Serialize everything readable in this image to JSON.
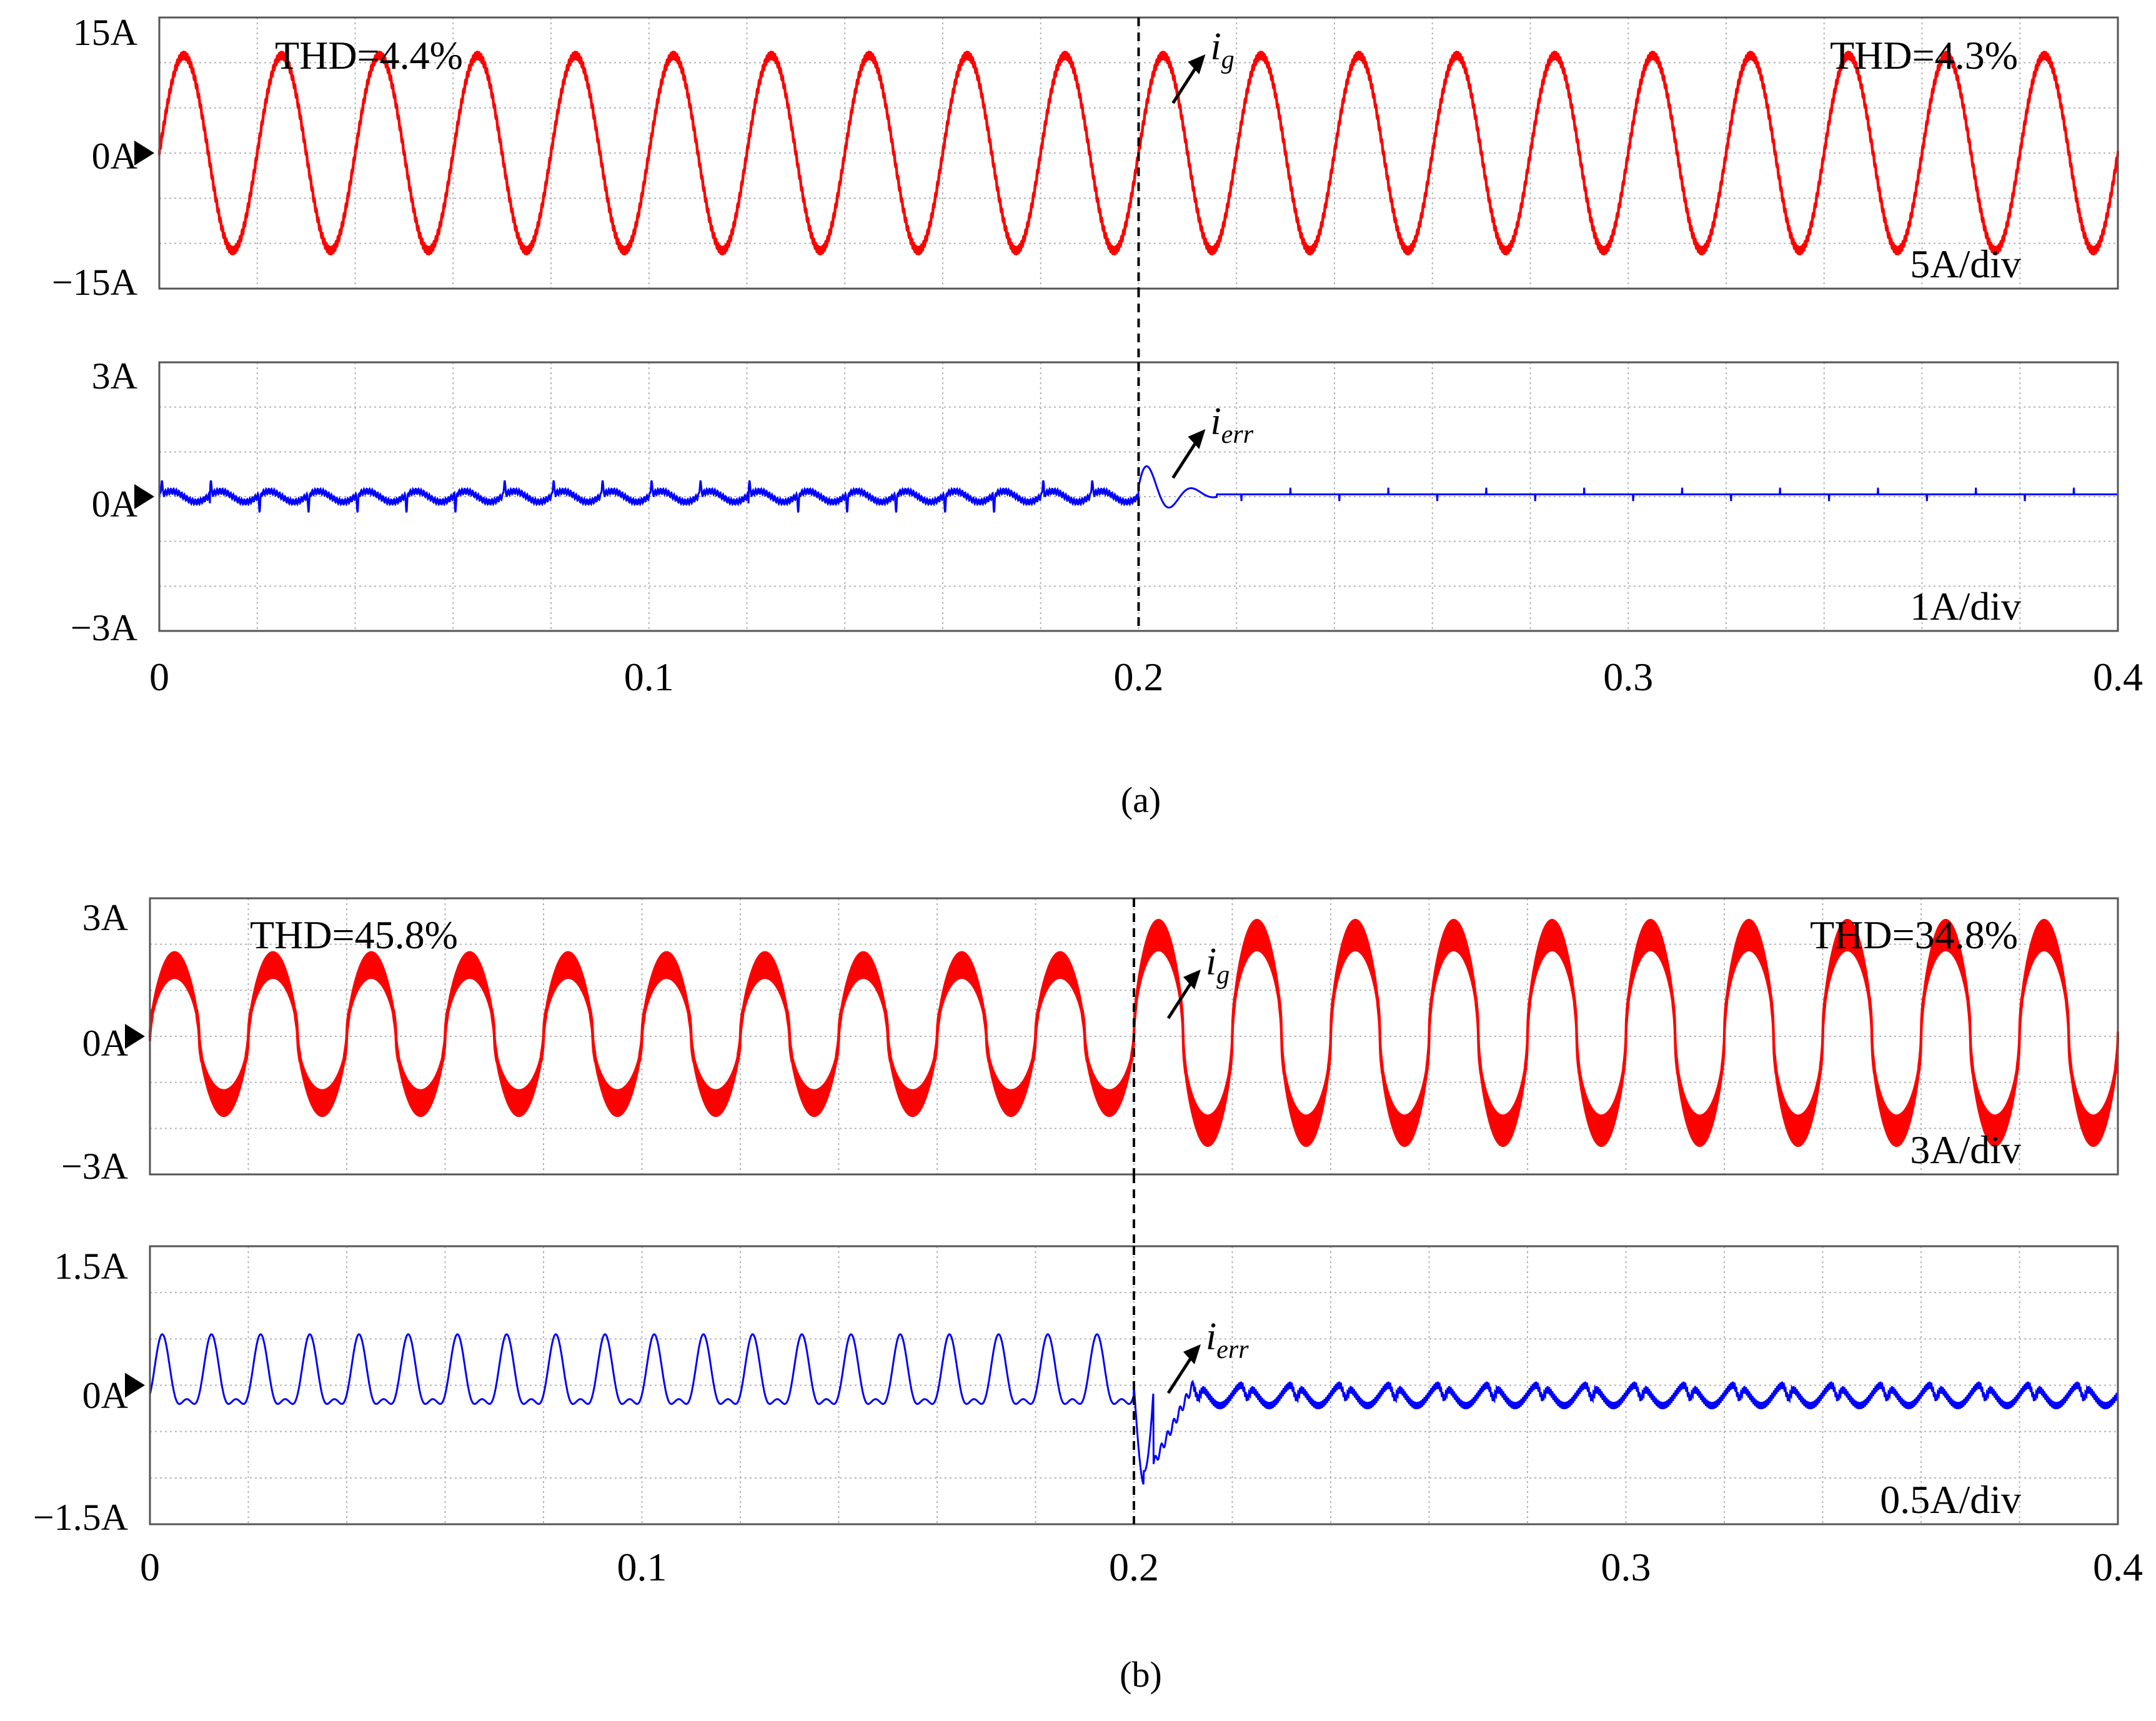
{
  "figure": {
    "subfigure_labels": [
      "(a)",
      "(b)"
    ],
    "time_ticks": [
      "0",
      "0.1",
      "0.2",
      "0.3",
      "0.4"
    ]
  },
  "colors": {
    "grid_current": "#ff0000",
    "error_current": "#0000ff",
    "axis": "#000000",
    "gridline": "#b4b4b4"
  },
  "chart_data": [
    {
      "id": "a-top",
      "type": "line",
      "channel": "i_g",
      "annotation_main": "i",
      "annotation_sub": "g",
      "thd_before": "THD=4.4%",
      "thd_after": "THD=4.3%",
      "scale_label": "5A/div",
      "y_ticks": [
        "15A",
        "0A",
        "−15A"
      ],
      "ylim": [
        -15,
        15
      ],
      "xlim": [
        0,
        0.4
      ],
      "grid": true,
      "series": [
        {
          "segment": "before",
          "x_range": [
            0,
            0.2
          ],
          "frequency_hz": 50,
          "peak_A": 10.8,
          "ripple_A": 0.3
        },
        {
          "segment": "after",
          "x_range": [
            0.2,
            0.4
          ],
          "frequency_hz": 50,
          "peak_A": 10.8,
          "ripple_A": 0.3
        }
      ],
      "step_time_s": 0.2
    },
    {
      "id": "a-bottom",
      "type": "line",
      "channel": "i_err",
      "annotation_main": "i",
      "annotation_sub": "err",
      "scale_label": "1A/div",
      "y_ticks": [
        "3A",
        "0A",
        "−3A"
      ],
      "ylim": [
        -3,
        3
      ],
      "xlim": [
        0,
        0.4
      ],
      "grid": true,
      "series": [
        {
          "segment": "before",
          "x_range": [
            0,
            0.2
          ],
          "amplitude_A": 0.3,
          "spikes_per_cycle": 2
        },
        {
          "segment": "transient",
          "x_range": [
            0.2,
            0.215
          ],
          "peak_A": 0.8
        },
        {
          "segment": "after",
          "x_range": [
            0.215,
            0.4
          ],
          "amplitude_A": 0.05
        }
      ],
      "step_time_s": 0.2
    },
    {
      "id": "b-top",
      "type": "line",
      "channel": "i_g",
      "annotation_main": "i",
      "annotation_sub": "g",
      "thd_before": "THD=45.8%",
      "thd_after": "THD=34.8%",
      "scale_label": "3A/div",
      "y_ticks": [
        "3A",
        "0A",
        "−3A"
      ],
      "ylim": [
        -3,
        3
      ],
      "xlim": [
        0,
        0.4
      ],
      "grid": true,
      "series": [
        {
          "segment": "before",
          "x_range": [
            0,
            0.2
          ],
          "frequency_hz": 50,
          "peak_A": 1.7,
          "trough_A": -1.7,
          "ripple_A": 0.4
        },
        {
          "segment": "after",
          "x_range": [
            0.2,
            0.4
          ],
          "frequency_hz": 50,
          "peak_A": 2.4,
          "trough_A": -2.2,
          "ripple_A": 0.5
        }
      ],
      "step_time_s": 0.2
    },
    {
      "id": "b-bottom",
      "type": "line",
      "channel": "i_err",
      "annotation_main": "i",
      "annotation_sub": "err",
      "scale_label": "0.5A/div",
      "y_ticks": [
        "1.5A",
        "0A",
        "−1.5A"
      ],
      "ylim": [
        -1.5,
        1.5
      ],
      "xlim": [
        0,
        0.4
      ],
      "grid": true,
      "series": [
        {
          "segment": "before",
          "x_range": [
            0,
            0.2
          ],
          "peak_A": 0.4,
          "trough_A": -0.3,
          "cycles_per_period": 2
        },
        {
          "segment": "transient",
          "x_range": [
            0.2,
            0.203
          ],
          "min_A": -1.1
        },
        {
          "segment": "after",
          "x_range": [
            0.203,
            0.4
          ],
          "peak_A": 0.05,
          "trough_A": -0.3
        }
      ],
      "step_time_s": 0.2
    }
  ]
}
